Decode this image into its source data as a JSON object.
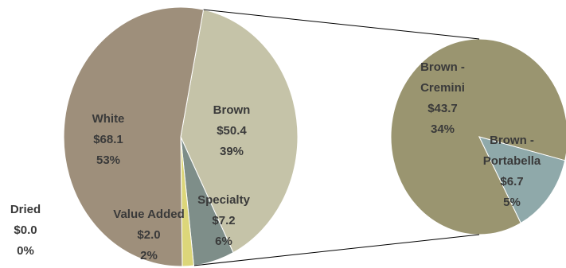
{
  "chart_data": [
    {
      "type": "pie",
      "slices": [
        {
          "label": "White",
          "value_text": "$68.1",
          "percent_text": "53%",
          "value": 68.1,
          "color": "#9e8f7b"
        },
        {
          "label": "Brown",
          "value_text": "$50.4",
          "percent_text": "39%",
          "value": 50.4,
          "color": "#c5c3a8"
        },
        {
          "label": "Specialty",
          "value_text": "$7.2",
          "percent_text": "6%",
          "value": 7.2,
          "color": "#7e8e89"
        },
        {
          "label": "Value Added",
          "value_text": "$2.0",
          "percent_text": "2%",
          "value": 2.0,
          "color": "#dcd67a"
        },
        {
          "label": "Dried",
          "value_text": "$0.0",
          "percent_text": "0%",
          "value": 0.0,
          "color": "#b8b8b8"
        }
      ]
    },
    {
      "type": "pie",
      "slices": [
        {
          "label": "Brown - Cremini",
          "value_text": "$43.7",
          "percent_text": "34%",
          "value": 43.7,
          "color": "#9a9570"
        },
        {
          "label": "Brown - Portabella",
          "value_text": "$6.7",
          "percent_text": "5%",
          "value": 6.7,
          "color": "#8fa9aa"
        }
      ]
    }
  ]
}
